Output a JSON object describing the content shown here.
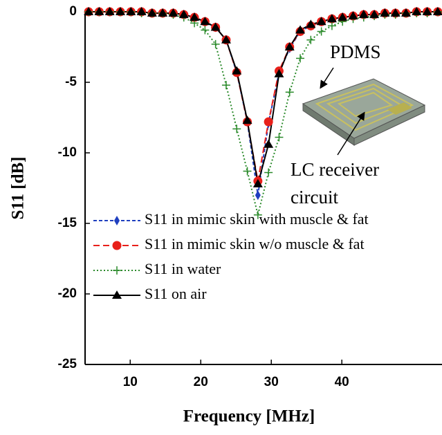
{
  "chart_data": {
    "type": "line",
    "xlabel": "Frequency [MHz]",
    "ylabel": "S11 [dB]",
    "annotations": [
      "PDMS",
      "LC receiver",
      "circuit"
    ],
    "xlim": [
      3.6,
      54.2
    ],
    "ylim": [
      -25,
      0
    ],
    "xticks": [
      10,
      20,
      30,
      40
    ],
    "yticks": [
      -25,
      -20,
      -15,
      -10,
      -5,
      0
    ],
    "legend": "lower left",
    "x": [
      4.1,
      5.6,
      7.1,
      8.6,
      10.1,
      11.6,
      13.1,
      14.6,
      16.1,
      17.6,
      19.1,
      20.6,
      22.1,
      23.6,
      25.1,
      26.6,
      28.1,
      29.6,
      31.1,
      32.6,
      34.1,
      35.6,
      37.1,
      38.6,
      40.1,
      41.6,
      43.1,
      44.6,
      46.1,
      47.6,
      49.1,
      50.6,
      52.1,
      53.6
    ],
    "series": [
      {
        "name": "S11 in mimic skin with muscle & fat",
        "color": "#1f3fbf",
        "marker": "diamond",
        "dash": "5,3",
        "values": [
          0,
          0,
          0,
          0,
          0,
          0,
          -0.1,
          -0.1,
          -0.1,
          -0.2,
          -0.4,
          -0.7,
          -1.1,
          -2.0,
          -4.3,
          -7.8,
          -13.0,
          -7.9,
          -4.3,
          -2.6,
          -1.4,
          -1.0,
          -0.7,
          -0.5,
          -0.4,
          -0.3,
          -0.2,
          -0.2,
          -0.1,
          -0.1,
          -0.1,
          0,
          0,
          0
        ]
      },
      {
        "name": "S11 in mimic skin w/o muscle & fat",
        "color": "#e8201a",
        "marker": "circle",
        "dash": "9,5",
        "values": [
          0,
          0,
          0,
          0,
          0,
          0,
          -0.1,
          -0.1,
          -0.1,
          -0.2,
          -0.4,
          -0.7,
          -1.1,
          -2.0,
          -4.3,
          -7.8,
          -12.0,
          -7.8,
          -4.2,
          -2.5,
          -1.4,
          -1.0,
          -0.7,
          -0.5,
          -0.4,
          -0.3,
          -0.2,
          -0.2,
          -0.1,
          -0.1,
          -0.1,
          0,
          0,
          0
        ]
      },
      {
        "name": "S11 in water",
        "color": "#2a8a2a",
        "marker": "plus",
        "dash": "2,3",
        "values": [
          0,
          0,
          0,
          0,
          0,
          -0.1,
          -0.1,
          -0.1,
          -0.2,
          -0.4,
          -0.8,
          -1.3,
          -2.3,
          -5.2,
          -8.3,
          -11.3,
          -14.4,
          -11.4,
          -8.9,
          -5.7,
          -3.3,
          -2.0,
          -1.4,
          -1.0,
          -0.7,
          -0.5,
          -0.4,
          -0.3,
          -0.2,
          -0.2,
          -0.1,
          -0.1,
          -0.1,
          0
        ]
      },
      {
        "name": "S11 on air",
        "color": "#000000",
        "marker": "triangle",
        "dash": "",
        "values": [
          0,
          0,
          0,
          0,
          0,
          0,
          -0.1,
          -0.1,
          -0.1,
          -0.2,
          -0.4,
          -0.7,
          -1.1,
          -2.0,
          -4.2,
          -7.7,
          -12.2,
          -9.4,
          -4.4,
          -2.5,
          -1.3,
          -0.9,
          -0.7,
          -0.5,
          -0.4,
          -0.3,
          -0.2,
          -0.2,
          -0.1,
          -0.1,
          -0.1,
          0,
          0,
          0
        ]
      }
    ]
  }
}
